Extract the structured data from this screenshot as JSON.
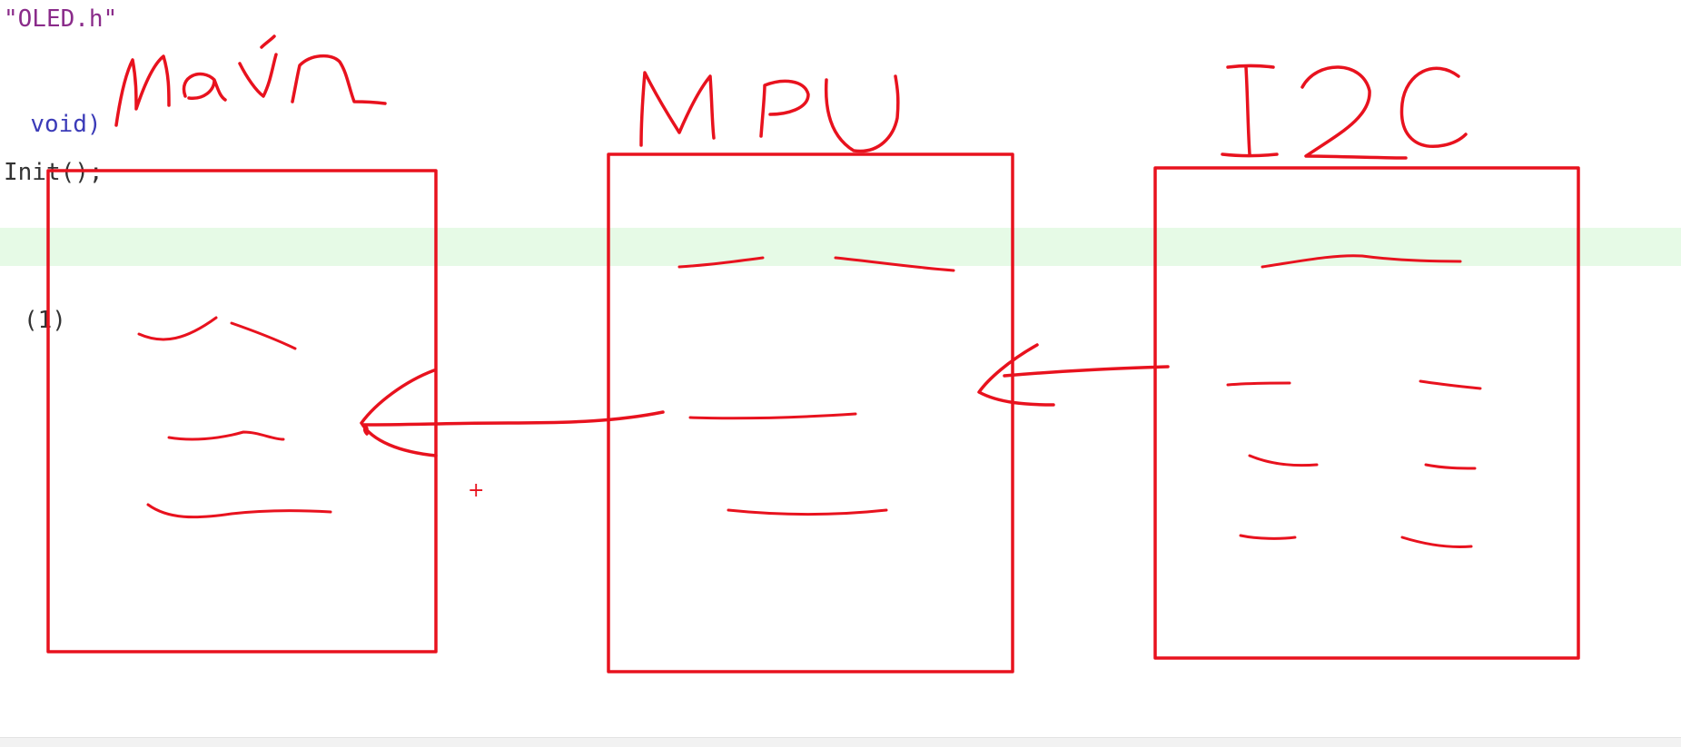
{
  "editor": {
    "lines": [
      {
        "id": "include",
        "text": "\"OLED.h\""
      },
      {
        "id": "main-signature",
        "text": "void)"
      },
      {
        "id": "init-call",
        "text": "Init();"
      },
      {
        "id": "while-loop",
        "text": "(1)"
      }
    ]
  },
  "annotations": {
    "labels": [
      "main",
      "MPU",
      "I2C"
    ],
    "ink_color": "#e8121e",
    "highlight_color": "#e6fae6"
  }
}
